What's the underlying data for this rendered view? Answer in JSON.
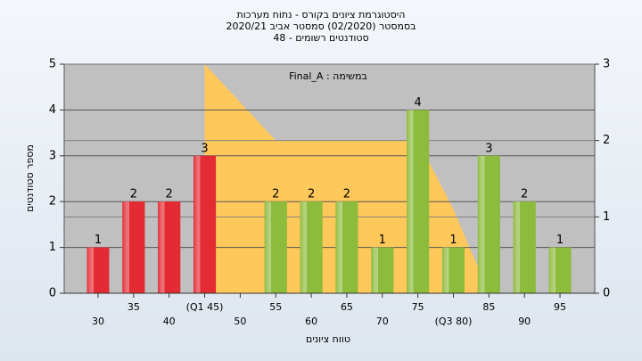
{
  "chart_data": {
    "type": "bar",
    "title": [
      "היסטוגרמת ציונים בקורס - נתוח מערכות",
      "בסמסטר  (02/2020)  סמסטר אביב 2020/21",
      "סטודנטים רשומים - 48"
    ],
    "annotation": "Final_A : במשימה",
    "x_label": "טווח ציונים",
    "y_label": "מספר סטודנטים",
    "categories": [
      "30",
      "35",
      "40",
      "(Q1 45)",
      "50",
      "55",
      "60",
      "65",
      "70",
      "75",
      "(Q3 80)",
      "85",
      "90",
      "95"
    ],
    "values": [
      1,
      2,
      2,
      3,
      null,
      2,
      2,
      2,
      1,
      4,
      1,
      3,
      2,
      1
    ],
    "colors": [
      "#e42a32",
      "#e42a32",
      "#e42a32",
      "#e42a32",
      "#8dbb3c",
      "#8dbb3c",
      "#8dbb3c",
      "#8dbb3c",
      "#8dbb3c",
      "#8dbb3c",
      "#8dbb3c",
      "#8dbb3c",
      "#8dbb3c",
      "#8dbb3c"
    ],
    "area": {
      "color": "#ffc85a",
      "axis": "y2",
      "values": [
        null,
        null,
        null,
        3,
        2.5,
        2,
        2,
        2,
        2,
        2,
        1.1,
        0,
        null,
        null
      ]
    },
    "ylim": [
      0,
      5
    ],
    "yticks": [
      0,
      1,
      2,
      3,
      4,
      5
    ],
    "y2lim": [
      0,
      3
    ],
    "y2ticks": [
      0,
      1,
      2,
      3
    ],
    "grid": true
  }
}
